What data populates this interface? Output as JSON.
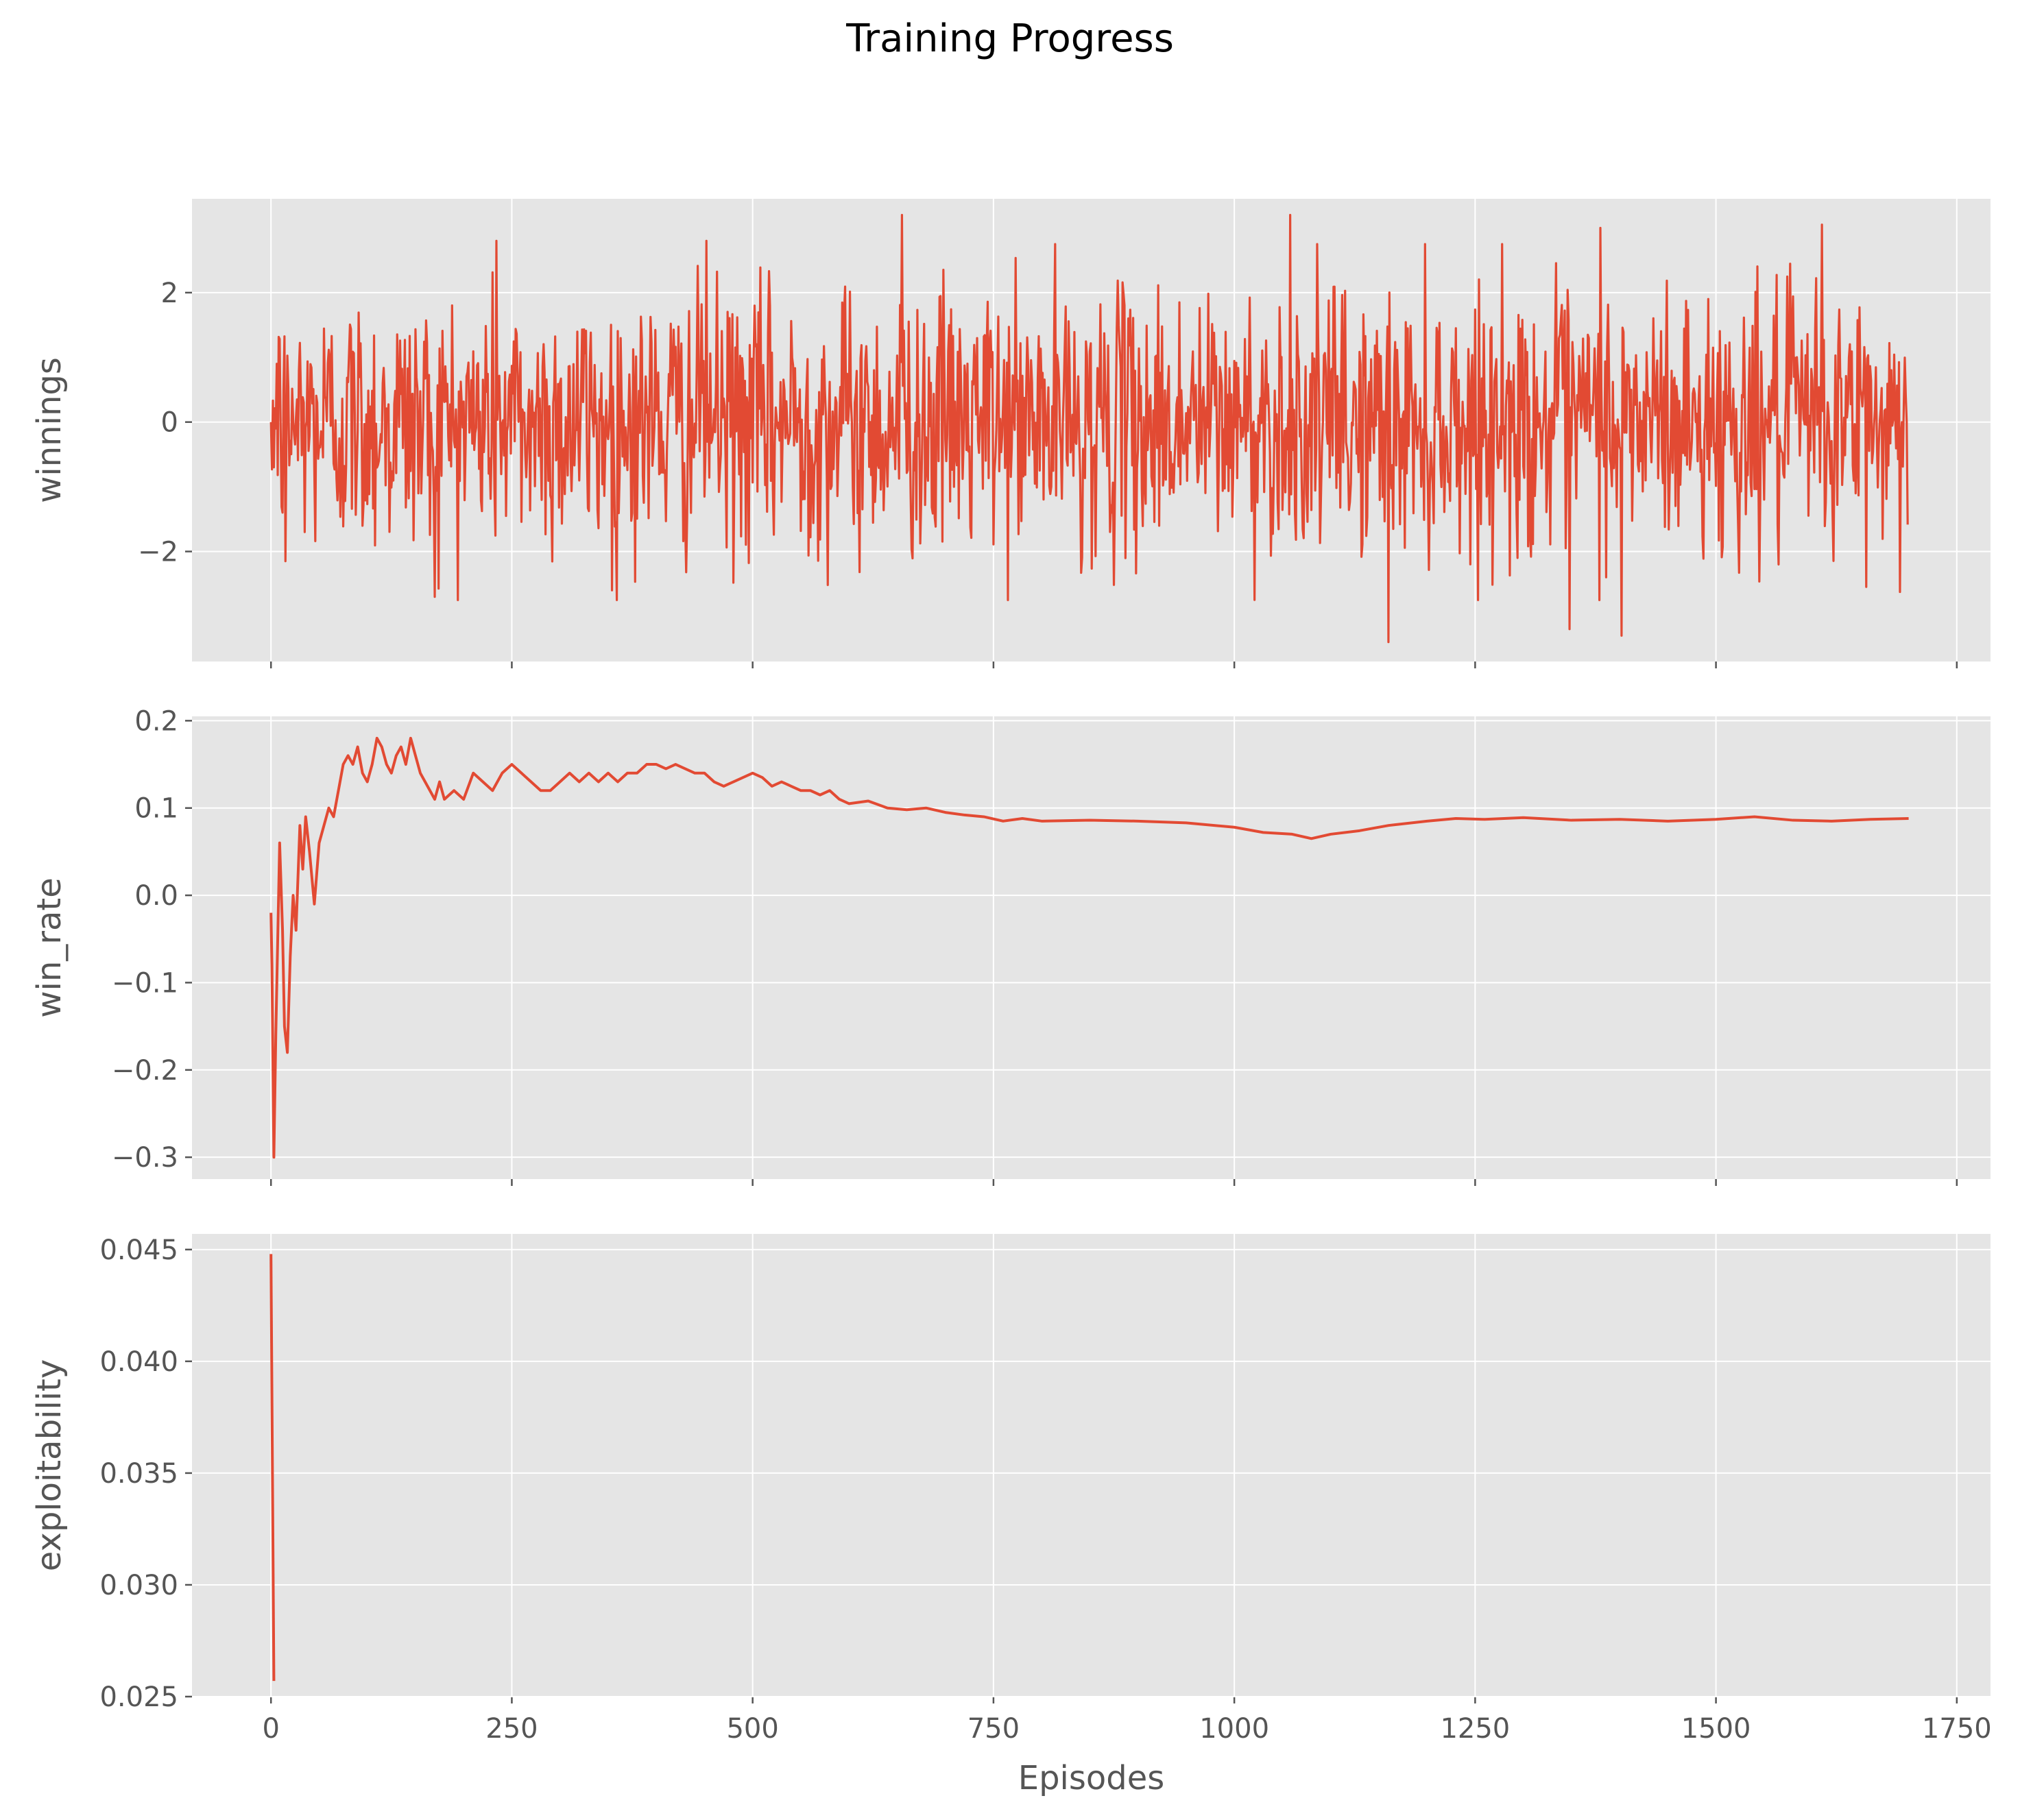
{
  "figure": {
    "title": "Training Progress"
  },
  "colors": {
    "panel_background": "#e5e5e5",
    "grid": "#ffffff",
    "series": "#e24a33",
    "tick": "#555555",
    "text": "#555555"
  },
  "chart_data": [
    {
      "type": "line",
      "ylabel": "winnings",
      "xlabel": "",
      "xlim": [
        -82,
        1785
      ],
      "ylim": [
        -3.7,
        3.45
      ],
      "grid": true,
      "x_ticks": [
        0,
        250,
        500,
        750,
        1000,
        1250,
        1500,
        1750
      ],
      "x_tick_labels_shown": false,
      "y_ticks": [
        -2,
        0,
        2
      ],
      "y_tick_labels": [
        "−2",
        "0",
        "2"
      ],
      "series": [
        {
          "count": 1700,
          "x_start": 0,
          "x_step": 1,
          "mean": 0.0,
          "std": 1.0,
          "peaks": [
            {
              "x": 0,
              "y": 0.0
            },
            {
              "x": 3,
              "y": -0.7
            },
            {
              "x": 6,
              "y": 0.9
            },
            {
              "x": 15,
              "y": -2.15
            },
            {
              "x": 170,
              "y": -2.7
            },
            {
              "x": 234,
              "y": 2.8
            },
            {
              "x": 354,
              "y": -2.6
            },
            {
              "x": 452,
              "y": 2.8
            },
            {
              "x": 655,
              "y": 3.2
            },
            {
              "x": 1058,
              "y": 3.2
            },
            {
              "x": 1160,
              "y": -3.4
            },
            {
              "x": 1348,
              "y": -3.2
            },
            {
              "x": 1380,
              "y": 3.0
            },
            {
              "x": 1402,
              "y": -3.3
            },
            {
              "x": 1610,
              "y": 3.05
            },
            {
              "x": 1700,
              "y": 1.05
            }
          ]
        }
      ]
    },
    {
      "type": "line",
      "ylabel": "win_rate",
      "xlabel": "",
      "xlim": [
        -82,
        1785
      ],
      "ylim": [
        -0.325,
        0.205
      ],
      "grid": true,
      "x_ticks": [
        0,
        250,
        500,
        750,
        1000,
        1250,
        1500,
        1750
      ],
      "x_tick_labels_shown": false,
      "y_ticks": [
        -0.3,
        -0.2,
        -0.1,
        0.0,
        0.1,
        0.2
      ],
      "y_tick_labels": [
        "−0.3",
        "−0.2",
        "−0.1",
        "0.0",
        "0.1",
        "0.2"
      ],
      "series": [
        {
          "x": [
            0,
            1,
            3,
            5,
            7,
            9,
            12,
            14,
            17,
            20,
            23,
            26,
            30,
            33,
            36,
            40,
            45,
            50,
            55,
            60,
            65,
            70,
            75,
            80,
            85,
            90,
            95,
            100,
            105,
            110,
            115,
            120,
            125,
            130,
            135,
            140,
            145,
            150,
            155,
            160,
            165,
            170,
            175,
            180,
            190,
            200,
            210,
            220,
            230,
            240,
            250,
            260,
            270,
            280,
            290,
            300,
            310,
            320,
            330,
            340,
            350,
            360,
            370,
            380,
            390,
            400,
            410,
            420,
            430,
            440,
            450,
            460,
            470,
            480,
            490,
            500,
            510,
            520,
            530,
            540,
            550,
            560,
            570,
            580,
            590,
            600,
            620,
            640,
            660,
            680,
            700,
            720,
            740,
            760,
            780,
            800,
            850,
            900,
            950,
            1000,
            1030,
            1060,
            1080,
            1100,
            1130,
            1160,
            1200,
            1230,
            1260,
            1300,
            1350,
            1400,
            1450,
            1500,
            1540,
            1580,
            1620,
            1660,
            1700
          ],
          "y": [
            -0.02,
            -0.08,
            -0.3,
            -0.16,
            -0.05,
            0.06,
            -0.04,
            -0.15,
            -0.18,
            -0.07,
            0.0,
            -0.04,
            0.08,
            0.03,
            0.09,
            0.05,
            -0.01,
            0.06,
            0.08,
            0.1,
            0.09,
            0.12,
            0.15,
            0.16,
            0.15,
            0.17,
            0.14,
            0.13,
            0.15,
            0.18,
            0.17,
            0.15,
            0.14,
            0.16,
            0.17,
            0.15,
            0.18,
            0.16,
            0.14,
            0.13,
            0.12,
            0.11,
            0.13,
            0.11,
            0.12,
            0.11,
            0.14,
            0.13,
            0.12,
            0.14,
            0.15,
            0.14,
            0.13,
            0.12,
            0.12,
            0.13,
            0.14,
            0.13,
            0.14,
            0.13,
            0.14,
            0.13,
            0.14,
            0.14,
            0.15,
            0.15,
            0.145,
            0.15,
            0.145,
            0.14,
            0.14,
            0.13,
            0.125,
            0.13,
            0.135,
            0.14,
            0.135,
            0.125,
            0.13,
            0.125,
            0.12,
            0.12,
            0.115,
            0.12,
            0.11,
            0.105,
            0.108,
            0.1,
            0.098,
            0.1,
            0.095,
            0.092,
            0.09,
            0.085,
            0.088,
            0.085,
            0.086,
            0.085,
            0.083,
            0.078,
            0.072,
            0.07,
            0.065,
            0.07,
            0.074,
            0.08,
            0.085,
            0.088,
            0.087,
            0.089,
            0.086,
            0.087,
            0.085,
            0.087,
            0.09,
            0.086,
            0.085,
            0.087,
            0.088
          ]
        }
      ]
    },
    {
      "type": "line",
      "ylabel": "exploitability",
      "xlabel": "Episodes",
      "xlim": [
        -82,
        1785
      ],
      "ylim": [
        0.025,
        0.0457
      ],
      "grid": true,
      "x_ticks": [
        0,
        250,
        500,
        750,
        1000,
        1250,
        1500,
        1750
      ],
      "x_tick_labels_shown": true,
      "x_tick_labels": [
        "0",
        "250",
        "500",
        "750",
        "1000",
        "1250",
        "1500",
        "1750"
      ],
      "y_ticks": [
        0.025,
        0.03,
        0.035,
        0.04,
        0.045
      ],
      "y_tick_labels": [
        "0.025",
        "0.030",
        "0.035",
        "0.040",
        "0.045"
      ],
      "series": [
        {
          "x": [
            0,
            3
          ],
          "y": [
            0.0448,
            0.0257
          ]
        }
      ]
    }
  ]
}
